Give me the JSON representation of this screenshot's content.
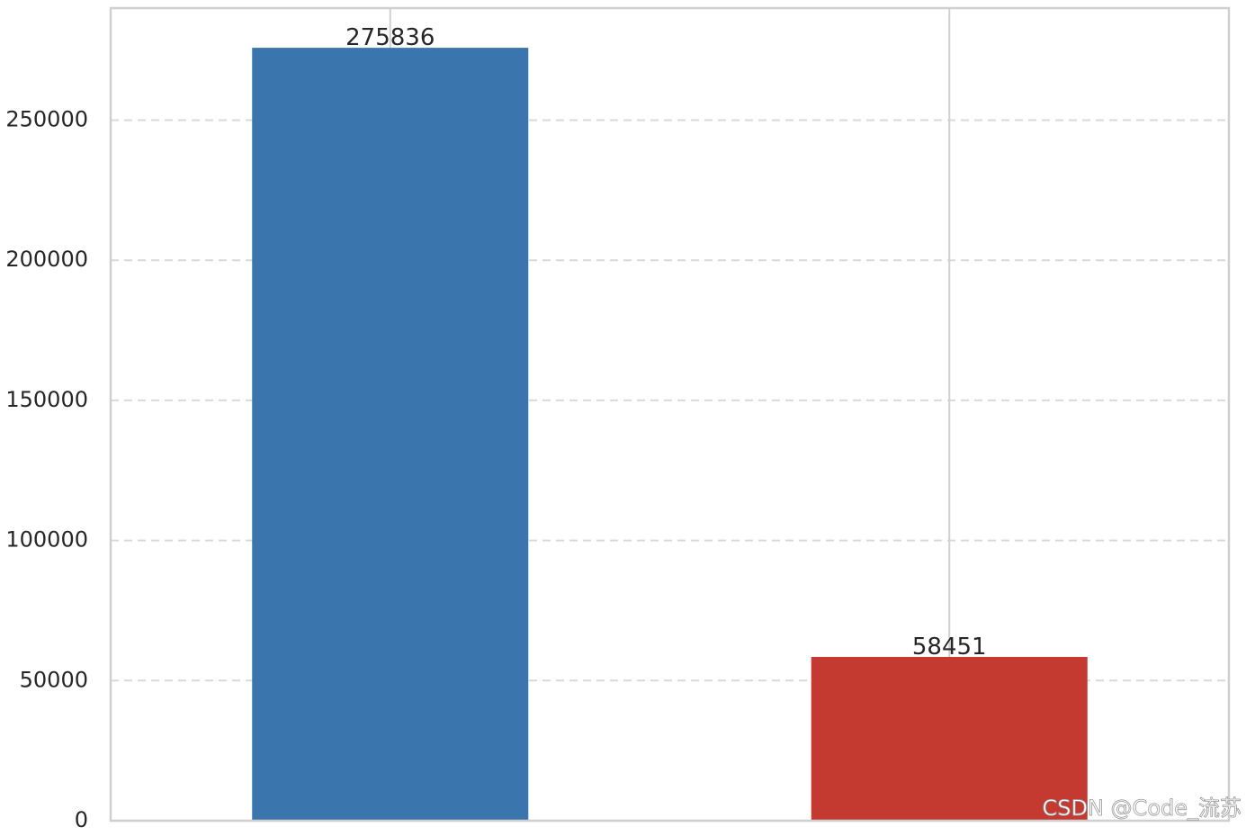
{
  "chart_data": {
    "type": "bar",
    "categories": [
      null,
      null
    ],
    "values": [
      275836,
      58451
    ],
    "colors": [
      "#3a75ae",
      "#c43a31"
    ],
    "ylim": [
      0,
      290000
    ],
    "yticks": [
      0,
      50000,
      100000,
      150000,
      200000,
      250000
    ],
    "grid": true,
    "watermark": "CSDN @Code_流苏"
  }
}
